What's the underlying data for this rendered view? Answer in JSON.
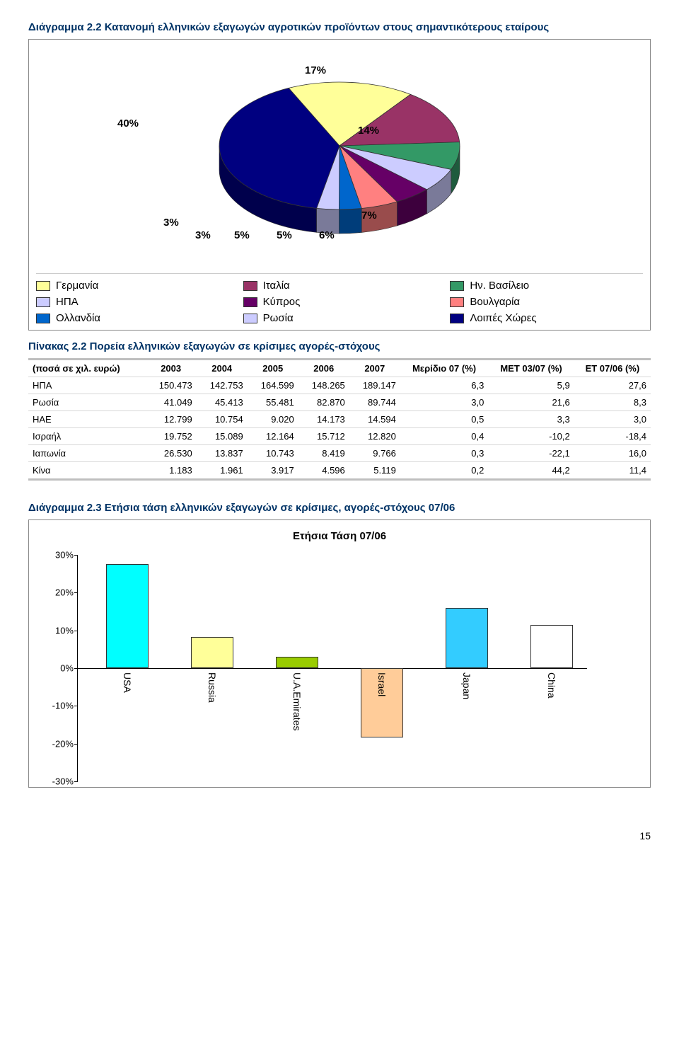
{
  "diagram22": {
    "title": "Διάγραμμα 2.2 Κατανομή ελληνικών εξαγωγών αγροτικών προϊόντων στους σημαντικότερους εταίρους",
    "type": "pie-3d",
    "background_color": "#ffffff",
    "slices": [
      {
        "label": "Γερμανία",
        "pct": 17,
        "color": "#ffff99"
      },
      {
        "label": "Ιταλία",
        "pct": 14,
        "color": "#993366"
      },
      {
        "label": "Ην. Βασίλειο",
        "pct": 7,
        "color": "#339966"
      },
      {
        "label": "ΗΠΑ",
        "pct": 6,
        "color": "#ccccff"
      },
      {
        "label": "Κύπρος",
        "pct": 5,
        "color": "#660066"
      },
      {
        "label": "Βουλγαρία",
        "pct": 5,
        "color": "#ff8080"
      },
      {
        "label": "Ολλανδία",
        "pct": 3,
        "color": "#0066cc"
      },
      {
        "label": "Ρωσία",
        "pct": 3,
        "color": "#ccccff"
      },
      {
        "label": "Λοιπές Χώρες",
        "pct": 40,
        "color": "#000080"
      }
    ]
  },
  "table22": {
    "title": "Πίνακας 2.2 Πορεία ελληνικών εξαγωγών σε κρίσιμες αγορές-στόχους",
    "row_header": "(ποσά σε χιλ. ευρώ)",
    "columns": [
      "2003",
      "2004",
      "2005",
      "2006",
      "2007",
      "Μερίδιο 07 (%)",
      "ΜΕΤ 03/07 (%)",
      "ΕΤ 07/06 (%)"
    ],
    "rows": [
      {
        "name": "ΗΠΑ",
        "cells": [
          "150.473",
          "142.753",
          "164.599",
          "148.265",
          "189.147",
          "6,3",
          "5,9",
          "27,6"
        ]
      },
      {
        "name": "Ρωσία",
        "cells": [
          "41.049",
          "45.413",
          "55.481",
          "82.870",
          "89.744",
          "3,0",
          "21,6",
          "8,3"
        ]
      },
      {
        "name": "ΗΑΕ",
        "cells": [
          "12.799",
          "10.754",
          "9.020",
          "14.173",
          "14.594",
          "0,5",
          "3,3",
          "3,0"
        ]
      },
      {
        "name": "Ισραήλ",
        "cells": [
          "19.752",
          "15.089",
          "12.164",
          "15.712",
          "12.820",
          "0,4",
          "-10,2",
          "-18,4"
        ]
      },
      {
        "name": "Ιαπωνία",
        "cells": [
          "26.530",
          "13.837",
          "10.743",
          "8.419",
          "9.766",
          "0,3",
          "-22,1",
          "16,0"
        ]
      },
      {
        "name": "Κίνα",
        "cells": [
          "1.183",
          "1.961",
          "3.917",
          "4.596",
          "5.119",
          "0,2",
          "44,2",
          "11,4"
        ]
      }
    ]
  },
  "diagram23": {
    "title": "Διάγραμμα 2.3 Ετήσια τάση ελληνικών εξαγωγών σε κρίσιμες, αγορές-στόχους 07/06",
    "chart_title": "Ετήσια Τάση 07/06",
    "type": "bar",
    "ylim": [
      -30,
      30
    ],
    "ytick_step": 10,
    "bars": [
      {
        "label": "USA",
        "value": 27.6,
        "color": "#00ffff"
      },
      {
        "label": "Russia",
        "value": 8.3,
        "color": "#ffff99"
      },
      {
        "label": "U.A.Emirates",
        "value": 3.0,
        "color": "#99cc00"
      },
      {
        "label": "Israel",
        "value": -18.4,
        "color": "#ffcc99"
      },
      {
        "label": "Japan",
        "value": 16.0,
        "color": "#33ccff"
      },
      {
        "label": "China",
        "value": 11.4,
        "color": "#ffffff"
      }
    ]
  },
  "page_number": "15"
}
